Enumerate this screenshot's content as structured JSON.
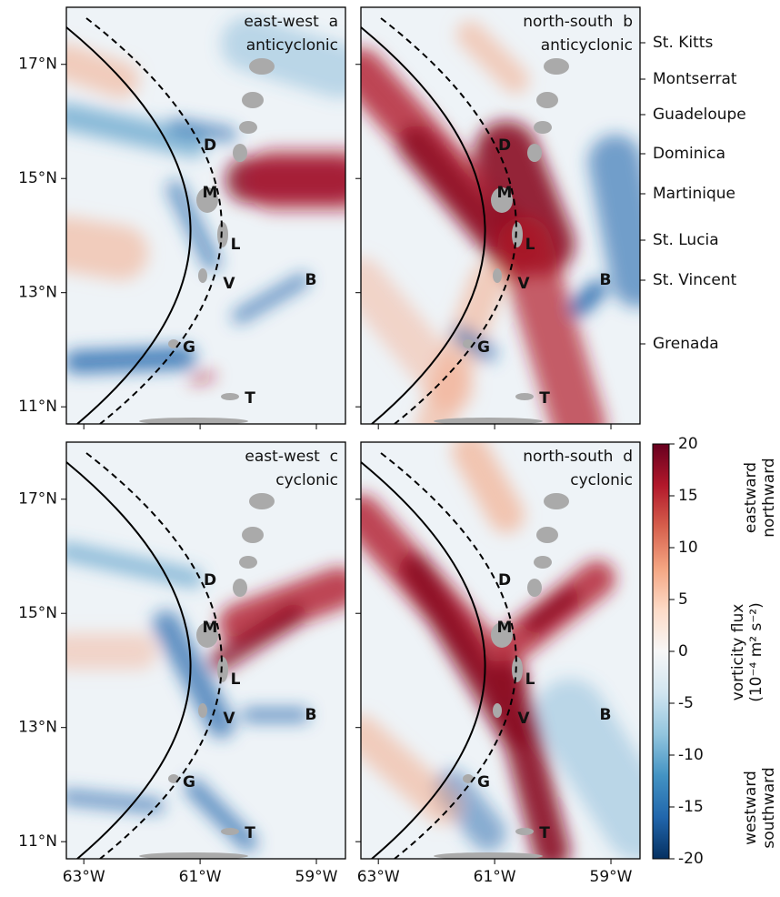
{
  "panels": [
    {
      "title": "east-west  a",
      "subtitle": "anticyclonic"
    },
    {
      "title": "north-south  b",
      "subtitle": "anticyclonic"
    },
    {
      "title": "east-west  c",
      "subtitle": "cyclonic"
    },
    {
      "title": "north-south  d",
      "subtitle": "cyclonic"
    }
  ],
  "x_axis": {
    "xlim": [
      -63.3,
      -58.5
    ],
    "ticks": [
      {
        "value": -63,
        "label": "63°W"
      },
      {
        "value": -61,
        "label": "61°W"
      },
      {
        "value": -59,
        "label": "59°W"
      }
    ]
  },
  "y_axis": {
    "ylim": [
      10.7,
      18.0
    ],
    "ticks": [
      {
        "value": 11,
        "label": "11°N"
      },
      {
        "value": 13,
        "label": "13°N"
      },
      {
        "value": 15,
        "label": "15°N"
      },
      {
        "value": 17,
        "label": "17°N"
      }
    ]
  },
  "island_letters": [
    "D",
    "M",
    "L",
    "V",
    "B",
    "G",
    "T"
  ],
  "island_names": [
    "St. Kitts",
    "Montserrat",
    "Guadeloupe",
    "Dominica",
    "Martinique",
    "St. Lucia",
    "St. Vincent",
    "Grenada"
  ],
  "colorbar": {
    "lim": [
      -20,
      20
    ],
    "ticks": [
      20,
      15,
      10,
      5,
      0,
      -5,
      -10,
      -15,
      -20
    ],
    "label": [
      "vorticity flux",
      "(10⁻⁴ m² s⁻²)"
    ],
    "top_label": [
      "eastward",
      "northward"
    ],
    "bottom_label": [
      "westward",
      "southward"
    ]
  }
}
